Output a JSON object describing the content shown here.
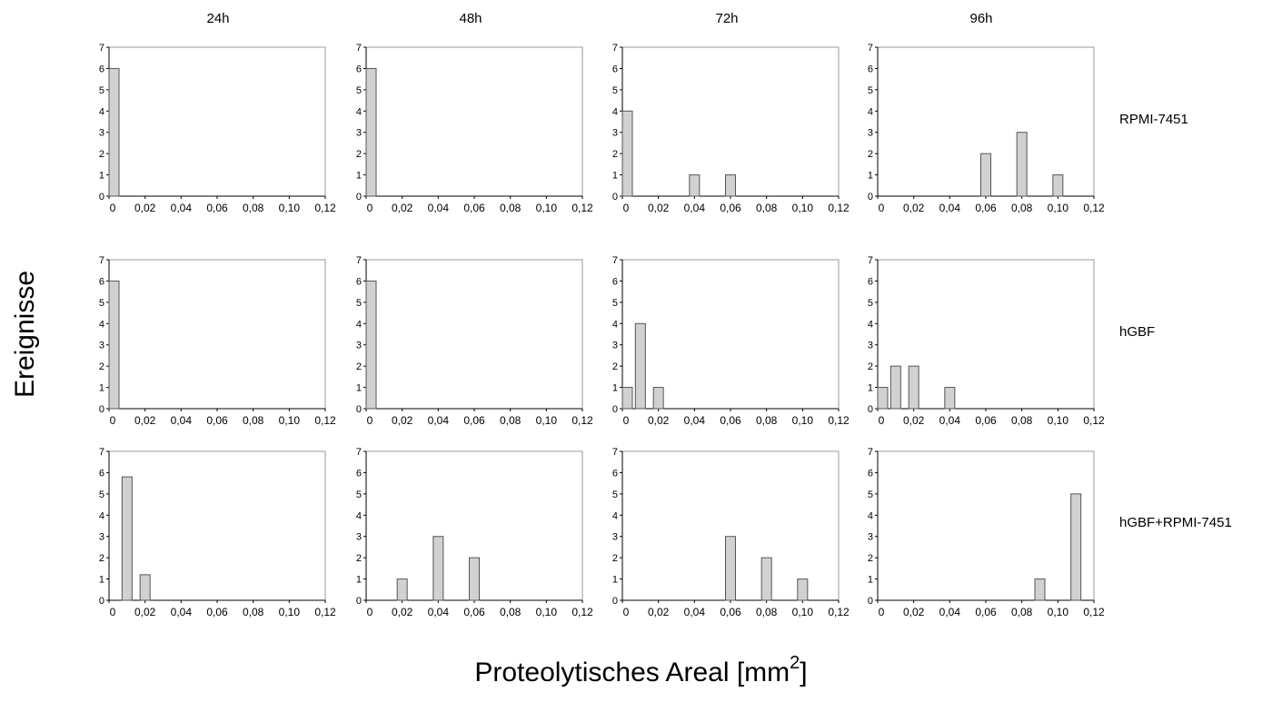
{
  "column_headers": [
    "24h",
    "48h",
    "72h",
    "96h"
  ],
  "row_labels": [
    "RPMI-7451",
    "hGBF",
    "hGBF+RPMI-7451"
  ],
  "y_axis_label": "Ereignisse",
  "x_axis_label": "Proteolytisches Areal [mm",
  "x_axis_label_superscript": "2",
  "x_axis_label_suffix": "]",
  "colors": {
    "bar_fill": "#d0d2d2",
    "bar_stroke": "#555555",
    "axis": "#000000",
    "frame": "#9a9a9a"
  },
  "chart_data": [
    {
      "type": "bar",
      "row": "RPMI-7451",
      "column": "24h",
      "x_values": [
        0.0
      ],
      "values": [
        6
      ],
      "xlim": [
        0,
        0.12
      ],
      "ylim": [
        0,
        7
      ],
      "xticks": [
        "0",
        "0,02",
        "0,04",
        "0,06",
        "0,08",
        "0,10",
        "0,12"
      ],
      "yticks": [
        "0",
        "1",
        "2",
        "3",
        "4",
        "5",
        "6",
        "7"
      ],
      "grid": false
    },
    {
      "type": "bar",
      "row": "RPMI-7451",
      "column": "48h",
      "x_values": [
        0.0
      ],
      "values": [
        6
      ],
      "xlim": [
        0,
        0.12
      ],
      "ylim": [
        0,
        7
      ],
      "xticks": [
        "0",
        "0,02",
        "0,04",
        "0,06",
        "0,08",
        "0,10",
        "0,12"
      ],
      "yticks": [
        "0",
        "1",
        "2",
        "3",
        "4",
        "5",
        "6",
        "7"
      ],
      "grid": false
    },
    {
      "type": "bar",
      "row": "RPMI-7451",
      "column": "72h",
      "x_values": [
        0.0,
        0.04,
        0.06
      ],
      "values": [
        4,
        1,
        1
      ],
      "xlim": [
        0,
        0.12
      ],
      "ylim": [
        0,
        7
      ],
      "xticks": [
        "0",
        "0,02",
        "0,04",
        "0,06",
        "0,08",
        "0,10",
        "0,12"
      ],
      "yticks": [
        "0",
        "1",
        "2",
        "3",
        "4",
        "5",
        "6",
        "7"
      ],
      "grid": false
    },
    {
      "type": "bar",
      "row": "RPMI-7451",
      "column": "96h",
      "x_values": [
        0.06,
        0.08,
        0.1
      ],
      "values": [
        2,
        3,
        1
      ],
      "xlim": [
        0,
        0.12
      ],
      "ylim": [
        0,
        7
      ],
      "xticks": [
        "0",
        "0,02",
        "0,04",
        "0,06",
        "0,08",
        "0,10",
        "0,12"
      ],
      "yticks": [
        "0",
        "1",
        "2",
        "3",
        "4",
        "5",
        "6",
        "7"
      ],
      "grid": false
    },
    {
      "type": "bar",
      "row": "hGBF",
      "column": "24h",
      "x_values": [
        0.0
      ],
      "values": [
        6
      ],
      "xlim": [
        0,
        0.12
      ],
      "ylim": [
        0,
        7
      ],
      "xticks": [
        "0",
        "0,02",
        "0,04",
        "0,06",
        "0,08",
        "0,10",
        "0,12"
      ],
      "yticks": [
        "0",
        "1",
        "2",
        "3",
        "4",
        "5",
        "6",
        "7"
      ],
      "grid": false
    },
    {
      "type": "bar",
      "row": "hGBF",
      "column": "48h",
      "x_values": [
        0.0
      ],
      "values": [
        6
      ],
      "xlim": [
        0,
        0.12
      ],
      "ylim": [
        0,
        7
      ],
      "xticks": [
        "0",
        "0,02",
        "0,04",
        "0,06",
        "0,08",
        "0,10",
        "0,12"
      ],
      "yticks": [
        "0",
        "1",
        "2",
        "3",
        "4",
        "5",
        "6",
        "7"
      ],
      "grid": false
    },
    {
      "type": "bar",
      "row": "hGBF",
      "column": "72h",
      "x_values": [
        0.0,
        0.01,
        0.02
      ],
      "values": [
        1,
        4,
        1
      ],
      "xlim": [
        0,
        0.12
      ],
      "ylim": [
        0,
        7
      ],
      "xticks": [
        "0",
        "0,02",
        "0,04",
        "0,06",
        "0,08",
        "0,10",
        "0,12"
      ],
      "yticks": [
        "0",
        "1",
        "2",
        "3",
        "4",
        "5",
        "6",
        "7"
      ],
      "grid": false
    },
    {
      "type": "bar",
      "row": "hGBF",
      "column": "96h",
      "x_values": [
        0.0,
        0.01,
        0.02,
        0.04
      ],
      "values": [
        1,
        2,
        2,
        1
      ],
      "xlim": [
        0,
        0.12
      ],
      "ylim": [
        0,
        7
      ],
      "xticks": [
        "0",
        "0,02",
        "0,04",
        "0,06",
        "0,08",
        "0,10",
        "0,12"
      ],
      "yticks": [
        "0",
        "1",
        "2",
        "3",
        "4",
        "5",
        "6",
        "7"
      ],
      "grid": false
    },
    {
      "type": "bar",
      "row": "hGBF+RPMI-7451",
      "column": "24h",
      "x_values": [
        0.01,
        0.02
      ],
      "values": [
        5.8,
        1.2
      ],
      "xlim": [
        0,
        0.12
      ],
      "ylim": [
        0,
        7
      ],
      "xticks": [
        "0",
        "0,02",
        "0,04",
        "0,06",
        "0,08",
        "0,10",
        "0,12"
      ],
      "yticks": [
        "0",
        "1",
        "2",
        "3",
        "4",
        "5",
        "6",
        "7"
      ],
      "grid": false
    },
    {
      "type": "bar",
      "row": "hGBF+RPMI-7451",
      "column": "48h",
      "x_values": [
        0.02,
        0.04,
        0.06
      ],
      "values": [
        1,
        3,
        2
      ],
      "xlim": [
        0,
        0.12
      ],
      "ylim": [
        0,
        7
      ],
      "xticks": [
        "0",
        "0,02",
        "0,04",
        "0,06",
        "0,08",
        "0,10",
        "0,12"
      ],
      "yticks": [
        "0",
        "1",
        "2",
        "3",
        "4",
        "5",
        "6",
        "7"
      ],
      "grid": false
    },
    {
      "type": "bar",
      "row": "hGBF+RPMI-7451",
      "column": "72h",
      "x_values": [
        0.06,
        0.08,
        0.1
      ],
      "values": [
        3,
        2,
        1
      ],
      "xlim": [
        0,
        0.12
      ],
      "ylim": [
        0,
        7
      ],
      "xticks": [
        "0",
        "0,02",
        "0,04",
        "0,06",
        "0,08",
        "0,10",
        "0,12"
      ],
      "yticks": [
        "0",
        "1",
        "2",
        "3",
        "4",
        "5",
        "6",
        "7"
      ],
      "grid": false
    },
    {
      "type": "bar",
      "row": "hGBF+RPMI-7451",
      "column": "96h",
      "x_values": [
        0.09,
        0.11
      ],
      "values": [
        1,
        5
      ],
      "xlim": [
        0,
        0.12
      ],
      "ylim": [
        0,
        7
      ],
      "xticks": [
        "0",
        "0,02",
        "0,04",
        "0,06",
        "0,08",
        "0,10",
        "0,12"
      ],
      "yticks": [
        "0",
        "1",
        "2",
        "3",
        "4",
        "5",
        "6",
        "7"
      ],
      "grid": false
    }
  ]
}
